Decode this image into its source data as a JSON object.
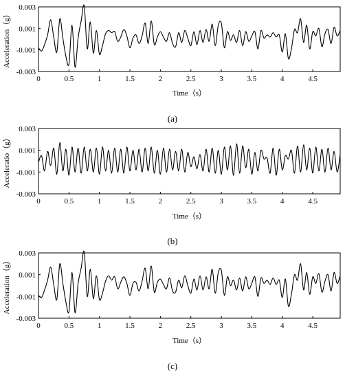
{
  "chart_data": [
    {
      "type": "line",
      "caption": "(a)",
      "xlabel": "Time（s）",
      "ylabel": "Acceleration（g）",
      "xlim": [
        0,
        4.95
      ],
      "ylim": [
        -0.003,
        0.003
      ],
      "xticks": [
        "0",
        "0.5",
        "1",
        "1.5",
        "2",
        "2.5",
        "3",
        "3.5",
        "4",
        "4.5"
      ],
      "yticks": [
        "0.003",
        "0.001",
        "-0.001",
        "-0.003"
      ],
      "series": [
        {
          "x": [
            0,
            0.05,
            0.1,
            0.15,
            0.2,
            0.25,
            0.3,
            0.35,
            0.4,
            0.45,
            0.5,
            0.55,
            0.6,
            0.65,
            0.7,
            0.75,
            0.8,
            0.85,
            0.9,
            0.95,
            1,
            1.05,
            1.1,
            1.15,
            1.2,
            1.25,
            1.3,
            1.35,
            1.4,
            1.45,
            1.5,
            1.55,
            1.6,
            1.65,
            1.7,
            1.75,
            1.8,
            1.85,
            1.9,
            1.95,
            2,
            2.05,
            2.1,
            2.15,
            2.2,
            2.25,
            2.3,
            2.35,
            2.4,
            2.45,
            2.5,
            2.55,
            2.6,
            2.65,
            2.7,
            2.75,
            2.8,
            2.85,
            2.9,
            2.95,
            3,
            3.05,
            3.1,
            3.15,
            3.2,
            3.25,
            3.3,
            3.35,
            3.4,
            3.45,
            3.5,
            3.55,
            3.6,
            3.65,
            3.7,
            3.75,
            3.8,
            3.85,
            3.9,
            3.95,
            4,
            4.05,
            4.1,
            4.15,
            4.2,
            4.25,
            4.3,
            4.35,
            4.4,
            4.45,
            4.5,
            4.55,
            4.6,
            4.65,
            4.7,
            4.75,
            4.8,
            4.85,
            4.9,
            4.95
          ],
          "y": [
            -0.0008,
            -0.0011,
            -0.0005,
            0.0004,
            0.0018,
            0.0002,
            -0.0012,
            0.0019,
            0.0001,
            -0.0016,
            -0.0023,
            0.0013,
            -0.0026,
            0.0001,
            0.0017,
            0.0031,
            -0.0009,
            0.0016,
            -0.0013,
            0.0008,
            -0.0014,
            -0.0006,
            0.0005,
            0.0008,
            0.0006,
            0.0007,
            -0.0002,
            0.0002,
            0.0009,
            0.0003,
            -0.0008,
            0.0001,
            0.0004,
            -0.0004,
            0.0003,
            0.0015,
            -0.0004,
            0.0017,
            -0.0005,
            0.0002,
            0.0007,
            0.0002,
            -0.0002,
            0.0006,
            -0.0004,
            -0.0007,
            0.0006,
            -0.0003,
            0.0008,
            0.0001,
            -0.0006,
            0.0007,
            -0.0005,
            0.0008,
            -0.0003,
            0.0009,
            -0.0002,
            0.0014,
            -0.0006,
            0.0013,
            0.0015,
            -0.0008,
            0.0007,
            -0.0001,
            0.0004,
            -0.0003,
            0.0008,
            -0.0006,
            0.0007,
            -0.0002,
            0.0003,
            0.0007,
            -0.0009,
            0.0008,
            0.0001,
            0.0004,
            0.0002,
            0.0006,
            0.0002,
            0.0004,
            -0.0012,
            0.0005,
            -0.0018,
            -0.0009,
            0.0009,
            0.0006,
            0.0019,
            -0.0003,
            0.0013,
            -0.0009,
            0.0007,
            0.0003,
            0.001,
            -0.0007,
            0.0005,
            0.0009,
            -0.0004,
            0.0011,
            0.0003,
            0.0008
          ]
        }
      ]
    },
    {
      "type": "line",
      "caption": "(b)",
      "xlabel": "Time（s）",
      "ylabel": "Acceleratio（g）",
      "xlim": [
        0,
        4.95
      ],
      "ylim": [
        -0.003,
        0.003
      ],
      "xticks": [
        "0",
        "0.5",
        "1",
        "1.5",
        "2",
        "2.5",
        "3",
        "3.5",
        "4",
        "4.5"
      ],
      "yticks": [
        "0.003",
        "0.001",
        "-0.001",
        "-0.003"
      ],
      "series": [
        {
          "x": [
            0,
            0.05,
            0.1,
            0.15,
            0.2,
            0.25,
            0.3,
            0.35,
            0.4,
            0.45,
            0.5,
            0.55,
            0.6,
            0.65,
            0.7,
            0.75,
            0.8,
            0.85,
            0.9,
            0.95,
            1,
            1.05,
            1.1,
            1.15,
            1.2,
            1.25,
            1.3,
            1.35,
            1.4,
            1.45,
            1.5,
            1.55,
            1.6,
            1.65,
            1.7,
            1.75,
            1.8,
            1.85,
            1.9,
            1.95,
            2,
            2.05,
            2.1,
            2.15,
            2.2,
            2.25,
            2.3,
            2.35,
            2.4,
            2.45,
            2.5,
            2.55,
            2.6,
            2.65,
            2.7,
            2.75,
            2.8,
            2.85,
            2.9,
            2.95,
            3,
            3.05,
            3.1,
            3.15,
            3.2,
            3.25,
            3.3,
            3.35,
            3.4,
            3.45,
            3.5,
            3.55,
            3.6,
            3.65,
            3.7,
            3.75,
            3.8,
            3.85,
            3.9,
            3.95,
            4,
            4.05,
            4.1,
            4.15,
            4.2,
            4.25,
            4.3,
            4.35,
            4.4,
            4.45,
            4.5,
            4.55,
            4.6,
            4.65,
            4.7,
            4.75,
            4.8,
            4.85,
            4.9,
            4.95
          ],
          "y": [
            -0.0001,
            0.0005,
            -0.0009,
            0.0009,
            -0.0004,
            0.0012,
            -0.0012,
            0.0017,
            -0.0009,
            0.0011,
            -0.0013,
            0.0013,
            -0.001,
            0.0012,
            -0.0011,
            0.0013,
            -0.0009,
            0.0011,
            -0.001,
            0.0012,
            -0.0012,
            0.0013,
            -0.0009,
            0.001,
            -0.0011,
            0.0012,
            -0.001,
            0.0011,
            -0.0011,
            0.0013,
            -0.0009,
            0.001,
            -0.0008,
            0.0011,
            -0.001,
            0.0012,
            -0.0009,
            0.0013,
            -0.0011,
            0.001,
            -0.0012,
            0.0012,
            -0.001,
            0.0011,
            -0.0008,
            0.0009,
            -0.0009,
            0.0011,
            -0.001,
            0.0008,
            -0.0005,
            0.0004,
            -0.0007,
            0.0006,
            -0.0009,
            0.0011,
            -0.001,
            0.0012,
            -0.0011,
            0.001,
            -0.0012,
            0.0013,
            -0.0008,
            0.0014,
            -0.0013,
            0.0016,
            -0.0011,
            0.0014,
            -0.0006,
            0.0011,
            -0.0012,
            0.0008,
            -0.0009,
            0.001,
            0.0002,
            0.0003,
            -0.0011,
            0.0012,
            -0.0013,
            0.0011,
            -0.0008,
            0.0005,
            0.0002,
            0.001,
            -0.0011,
            0.0014,
            -0.001,
            0.0015,
            -0.0008,
            0.0012,
            -0.0011,
            0.0013,
            -0.0009,
            0.0011,
            -0.001,
            0.0012,
            -0.0008,
            0.0009,
            -0.001,
            0.0006
          ]
        }
      ]
    },
    {
      "type": "line",
      "caption": "(c)",
      "xlabel": "Time（s）",
      "ylabel": "Acceleration（g）",
      "xlim": [
        0,
        4.95
      ],
      "ylim": [
        -0.003,
        0.003
      ],
      "xticks": [
        "0",
        "0.5",
        "1",
        "1.5",
        "2",
        "2.5",
        "3",
        "3.5",
        "4",
        "4.5"
      ],
      "yticks": [
        "0.003",
        "0.001",
        "-0.001",
        "-0.003"
      ],
      "series": [
        {
          "x": [
            0,
            0.05,
            0.1,
            0.15,
            0.2,
            0.25,
            0.3,
            0.35,
            0.4,
            0.45,
            0.5,
            0.55,
            0.6,
            0.65,
            0.7,
            0.75,
            0.8,
            0.85,
            0.9,
            0.95,
            1,
            1.05,
            1.1,
            1.15,
            1.2,
            1.25,
            1.3,
            1.35,
            1.4,
            1.45,
            1.5,
            1.55,
            1.6,
            1.65,
            1.7,
            1.75,
            1.8,
            1.85,
            1.9,
            1.95,
            2,
            2.05,
            2.1,
            2.15,
            2.2,
            2.25,
            2.3,
            2.35,
            2.4,
            2.45,
            2.5,
            2.55,
            2.6,
            2.65,
            2.7,
            2.75,
            2.8,
            2.85,
            2.9,
            2.95,
            3,
            3.05,
            3.1,
            3.15,
            3.2,
            3.25,
            3.3,
            3.35,
            3.4,
            3.45,
            3.5,
            3.55,
            3.6,
            3.65,
            3.7,
            3.75,
            3.8,
            3.85,
            3.9,
            3.95,
            4,
            4.05,
            4.1,
            4.15,
            4.2,
            4.25,
            4.3,
            4.35,
            4.4,
            4.45,
            4.5,
            4.55,
            4.6,
            4.65,
            4.7,
            4.75,
            4.8,
            4.85,
            4.9,
            4.95
          ],
          "y": [
            -0.0009,
            -0.0011,
            -0.0004,
            0.0005,
            0.0017,
            0.0001,
            -0.0013,
            0.002,
            0.0002,
            -0.0015,
            -0.0024,
            0.0012,
            -0.0025,
            0.0002,
            0.0016,
            0.0031,
            -0.001,
            0.0015,
            -0.0012,
            0.0009,
            -0.0013,
            -0.0007,
            0.0004,
            0.0009,
            0.0005,
            0.0008,
            -0.0003,
            0.0003,
            0.0008,
            0.0002,
            -0.0009,
            0.0002,
            0.0003,
            -0.0005,
            0.0004,
            0.0016,
            -0.0003,
            0.0018,
            -0.0006,
            0.0003,
            0.0006,
            0.0001,
            -0.0003,
            0.0007,
            -0.0005,
            -0.0006,
            0.0005,
            -0.0002,
            0.0009,
            0.0,
            -0.0007,
            0.0006,
            -0.0004,
            0.0009,
            -0.0004,
            0.0008,
            -0.0003,
            0.0015,
            -0.0007,
            0.0012,
            0.0014,
            -0.0009,
            0.0008,
            0.0,
            0.0005,
            -0.0004,
            0.0007,
            -0.0005,
            0.0008,
            -0.0003,
            0.0002,
            0.0008,
            -0.001,
            0.0007,
            0.0002,
            0.0005,
            0.0001,
            0.0007,
            0.0001,
            0.0005,
            -0.0011,
            0.0006,
            -0.0019,
            -0.0008,
            0.001,
            0.0005,
            0.002,
            -0.0004,
            0.0012,
            -0.0008,
            0.0008,
            0.0002,
            0.0011,
            -0.0006,
            0.0004,
            0.001,
            -0.0005,
            0.0012,
            0.0002,
            0.0009
          ]
        }
      ]
    }
  ]
}
